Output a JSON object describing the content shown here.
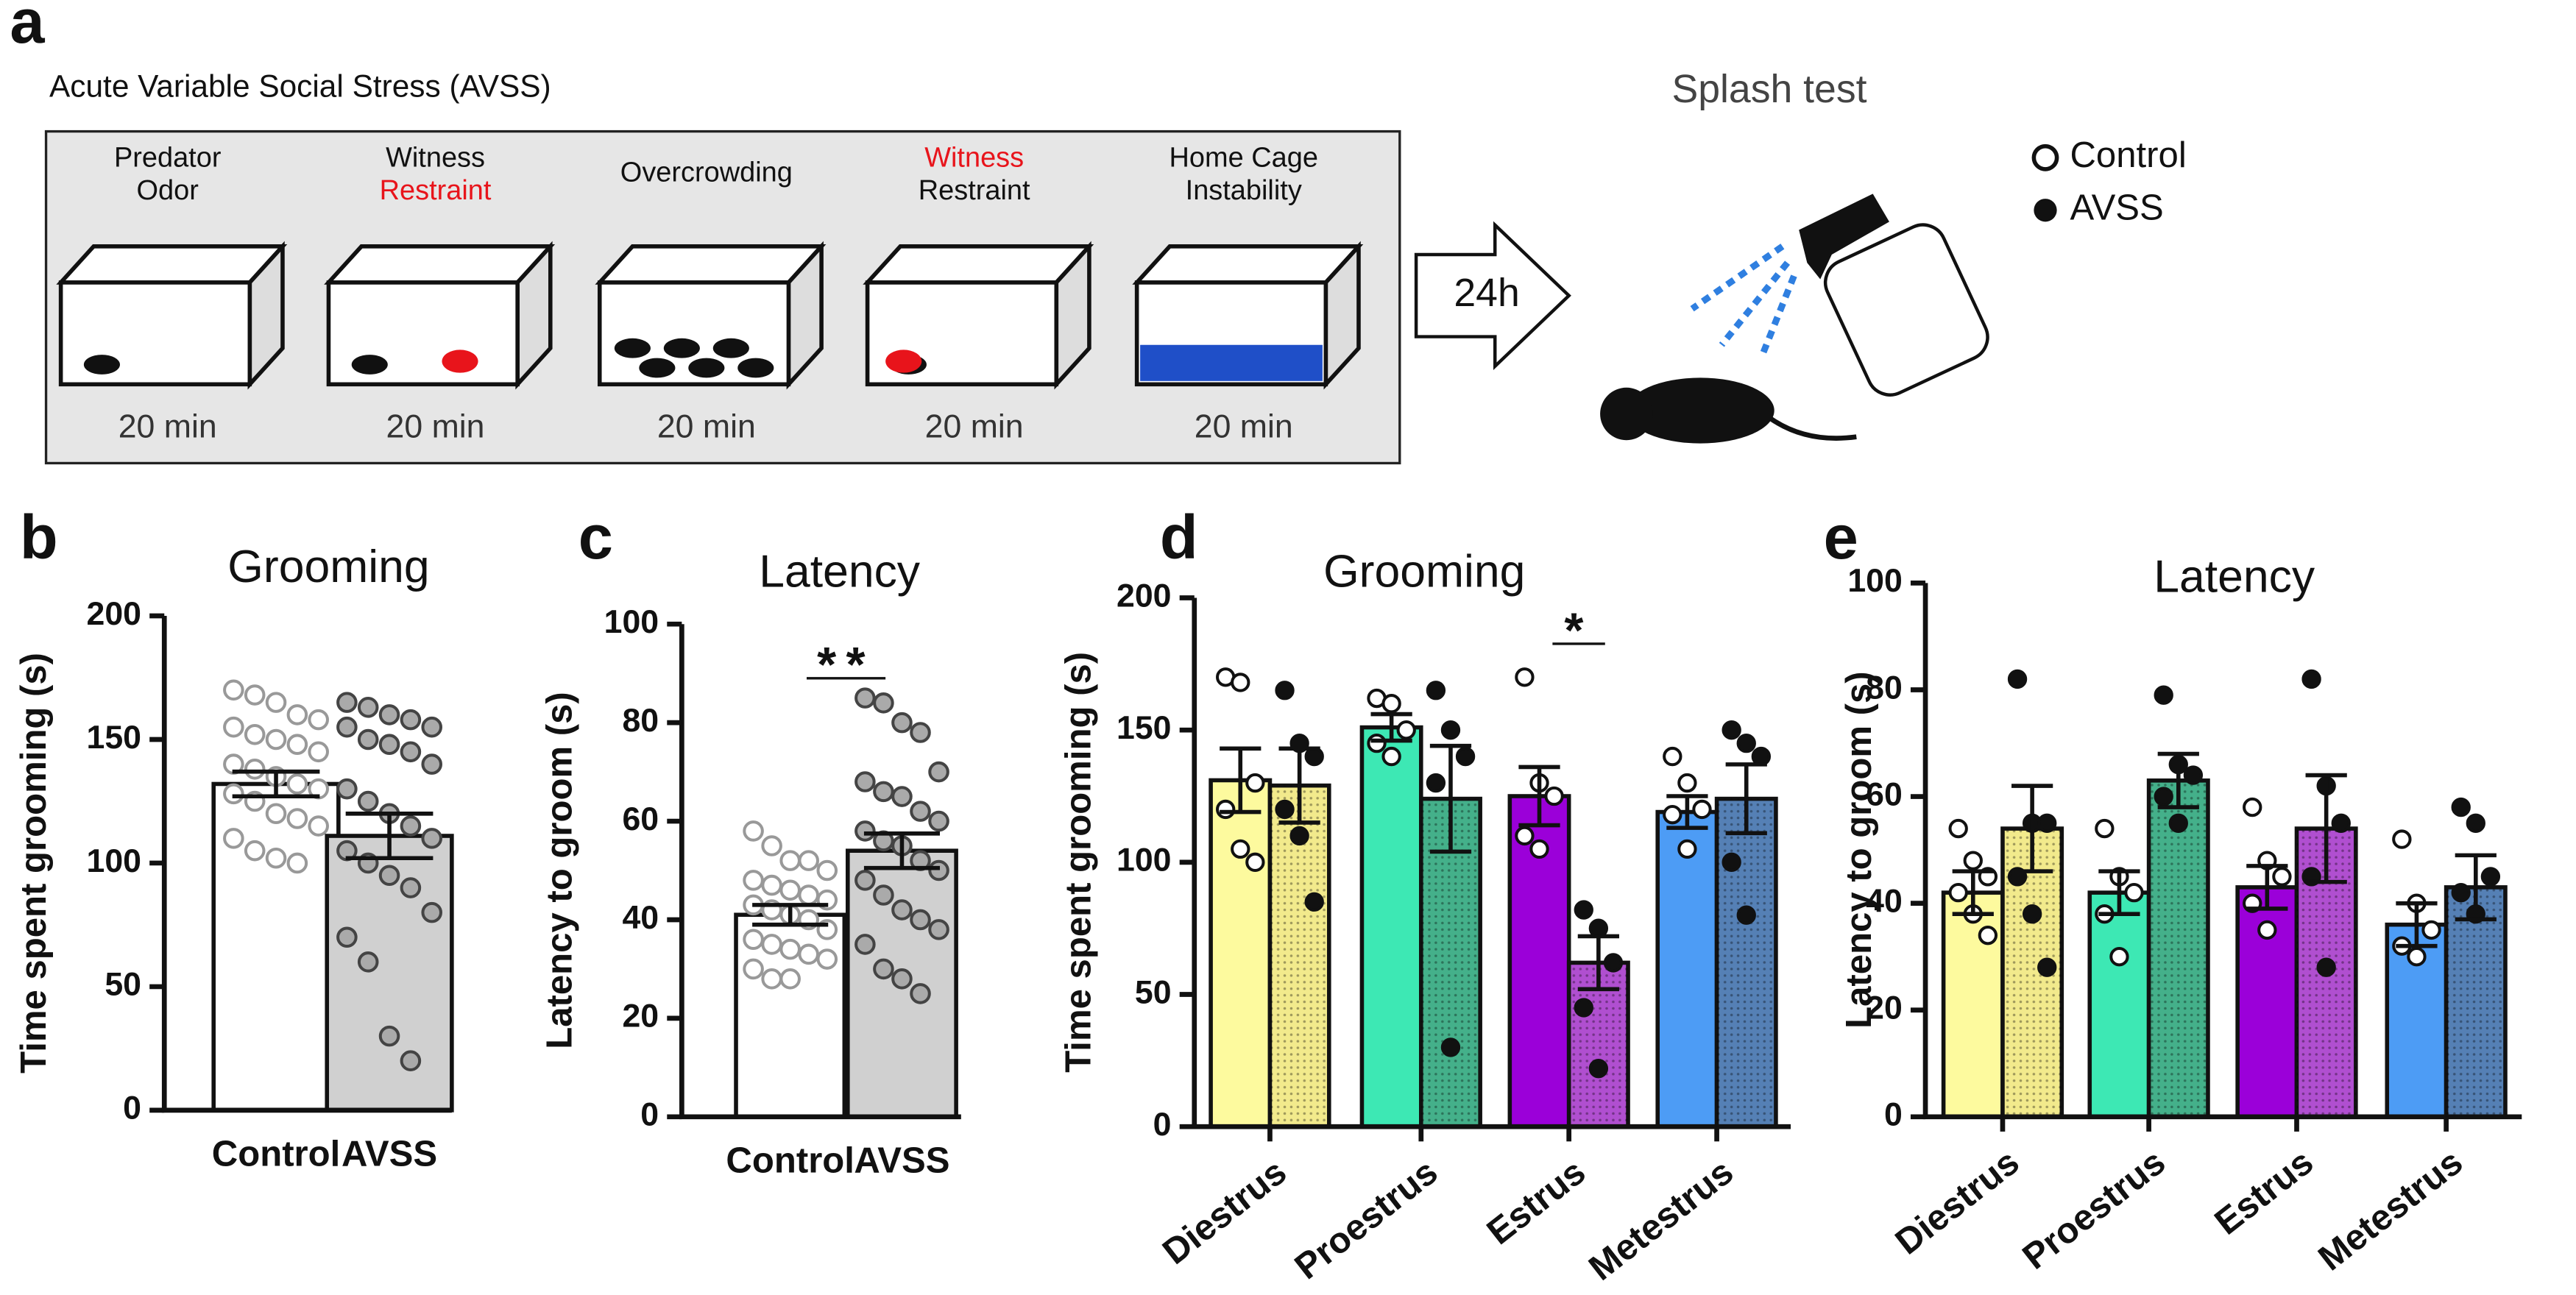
{
  "diagram": {
    "letter": "a",
    "title": "Acute Variable Social Stress (AVSS)",
    "stages": [
      {
        "lines": [
          {
            "text": "Predator"
          },
          {
            "text": "Odor"
          }
        ],
        "duration": "20 min"
      },
      {
        "lines": [
          {
            "text": "Witness"
          },
          {
            "text": "Restraint",
            "color": "#e8141b"
          }
        ],
        "duration": "20 min"
      },
      {
        "lines": [
          {
            "text": "Overcrowding"
          }
        ],
        "duration": "20 min"
      },
      {
        "lines": [
          {
            "text": "Witness",
            "color": "#e8141b"
          },
          {
            "text": "Restraint"
          }
        ],
        "duration": "20 min"
      },
      {
        "lines": [
          {
            "text": "Home Cage"
          },
          {
            "text": "Instability"
          }
        ],
        "duration": "20 min"
      }
    ],
    "arrow": "24h",
    "test": "Splash test"
  },
  "chart_data": [
    {
      "type": "bar",
      "panel": "b",
      "title": "Grooming",
      "y_label": "Time spent grooming (s)",
      "categories": [
        "Control",
        "AVSS"
      ],
      "values": [
        132,
        111
      ],
      "errors": [
        5,
        9
      ],
      "colors": [
        "#ffffff",
        "#d0d0d0"
      ],
      "points": [
        [
          170,
          168,
          165,
          160,
          158,
          155,
          152,
          150,
          148,
          145,
          140,
          138,
          135,
          132,
          130,
          128,
          125,
          120,
          118,
          115,
          110,
          105,
          102,
          100
        ],
        [
          165,
          163,
          160,
          158,
          155,
          155,
          150,
          148,
          145,
          140,
          130,
          125,
          120,
          115,
          110,
          105,
          100,
          95,
          90,
          80,
          70,
          60,
          30,
          20
        ]
      ],
      "ylim": [
        0,
        200
      ],
      "yticks": [
        0,
        50,
        100,
        150,
        200
      ]
    },
    {
      "type": "bar",
      "panel": "c",
      "title": "Latency",
      "y_label": "Latency to groom (s)",
      "categories": [
        "Control",
        "AVSS"
      ],
      "values": [
        41,
        54
      ],
      "errors": [
        2,
        3.5
      ],
      "colors": [
        "#ffffff",
        "#d0d0d0"
      ],
      "points": [
        [
          58,
          55,
          52,
          52,
          50,
          48,
          47,
          46,
          45,
          44,
          43,
          42,
          41,
          40,
          38,
          36,
          35,
          34,
          33,
          32,
          30,
          28,
          28
        ],
        [
          85,
          84,
          80,
          78,
          70,
          68,
          66,
          65,
          62,
          60,
          58,
          56,
          55,
          52,
          50,
          48,
          45,
          42,
          40,
          38,
          35,
          30,
          28,
          25
        ]
      ],
      "annotations": [
        "**"
      ],
      "ylim": [
        0,
        100
      ],
      "yticks": [
        0,
        20,
        40,
        60,
        80,
        100
      ]
    },
    {
      "type": "grouped_bar",
      "panel": "d",
      "title": "Grooming",
      "y_label": "Time spent grooming (s)",
      "categories": [
        "Diestrus",
        "Proestrus",
        "Estrus",
        "Metestrus"
      ],
      "series": [
        {
          "name": "Control",
          "colors": [
            "#fdfa9e",
            "#3de8b4",
            "#9b00d9",
            "#4d9cf5"
          ],
          "values": [
            131,
            151,
            125,
            119
          ],
          "errors": [
            12,
            5,
            11,
            6
          ],
          "points": [
            [
              170,
              168,
              130,
              120,
              105,
              100
            ],
            [
              162,
              160,
              150,
              145,
              140
            ],
            [
              170,
              130,
              125,
              110,
              105
            ],
            [
              140,
              130,
              120,
              118,
              105
            ]
          ]
        },
        {
          "name": "AVSS",
          "colors": [
            "#f2ea8c",
            "#44b08a",
            "#b04fd0",
            "#5580b5"
          ],
          "values": [
            129,
            124,
            62,
            124
          ],
          "errors": [
            14,
            20,
            10,
            13
          ],
          "points": [
            [
              165,
              145,
              140,
              120,
              110,
              85
            ],
            [
              165,
              150,
              140,
              130,
              30
            ],
            [
              82,
              75,
              62,
              45,
              22
            ],
            [
              150,
              145,
              140,
              100,
              80
            ]
          ]
        }
      ],
      "annotations": [
        "*"
      ],
      "ylim": [
        0,
        200
      ],
      "yticks": [
        0,
        50,
        100,
        150,
        200
      ]
    },
    {
      "type": "grouped_bar",
      "panel": "e",
      "title": "Latency",
      "y_label": "Latency to groom (s)",
      "categories": [
        "Diestrus",
        "Proestrus",
        "Estrus",
        "Metestrus"
      ],
      "series": [
        {
          "name": "Control",
          "colors": [
            "#fdfa9e",
            "#3de8b4",
            "#9b00d9",
            "#4d9cf5"
          ],
          "values": [
            42,
            42,
            43,
            36
          ],
          "errors": [
            4,
            4,
            4,
            4
          ],
          "points": [
            [
              54,
              48,
              45,
              42,
              38,
              34
            ],
            [
              54,
              45,
              42,
              38,
              30
            ],
            [
              58,
              48,
              45,
              40,
              35
            ],
            [
              52,
              40,
              35,
              32,
              30
            ]
          ]
        },
        {
          "name": "AVSS",
          "colors": [
            "#f2ea8c",
            "#44b08a",
            "#b04fd0",
            "#5580b5"
          ],
          "values": [
            54,
            63,
            54,
            43
          ],
          "errors": [
            8,
            5,
            10,
            6
          ],
          "points": [
            [
              82,
              55,
              55,
              45,
              38,
              28
            ],
            [
              79,
              66,
              64,
              60,
              55
            ],
            [
              82,
              62,
              55,
              45,
              28
            ],
            [
              58,
              55,
              45,
              42,
              38
            ]
          ]
        }
      ],
      "ylim": [
        0,
        100
      ],
      "yticks": [
        0,
        20,
        40,
        60,
        80,
        100
      ]
    }
  ]
}
